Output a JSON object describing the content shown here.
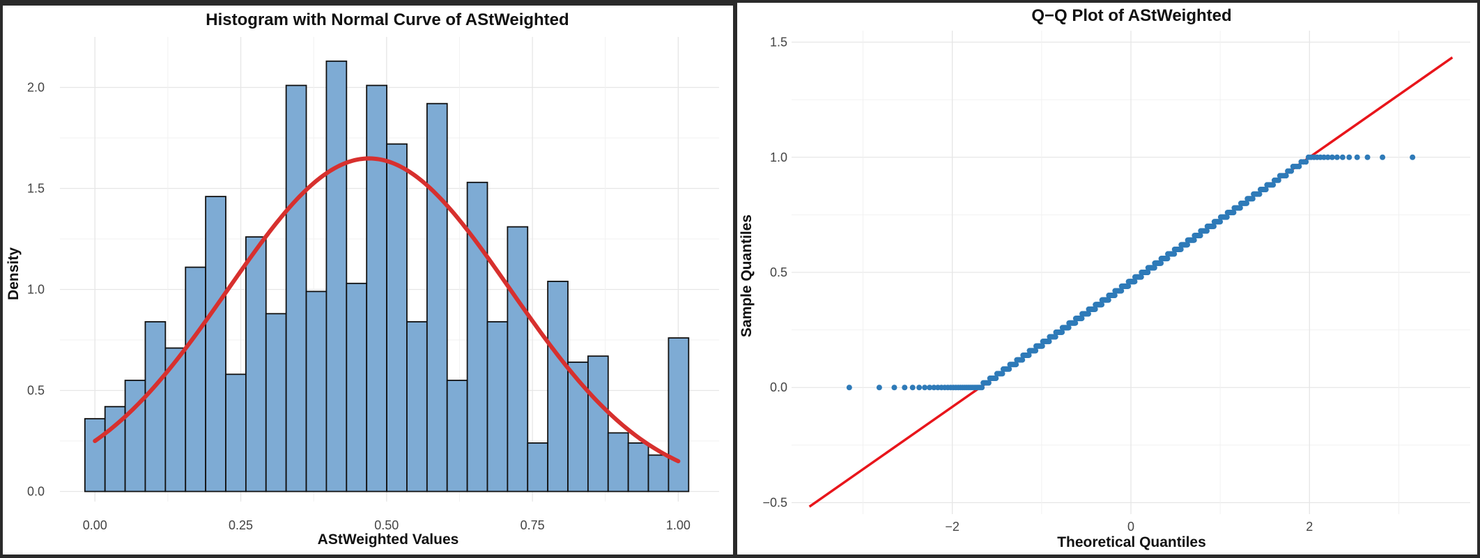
{
  "chart_data": [
    {
      "type": "bar",
      "subtype": "histogram-with-density-curve",
      "title": "Histogram with Normal Curve of AStWeighted",
      "xlabel": "AStWeighted Values",
      "ylabel": "Density",
      "xlim": [
        -0.06,
        1.07
      ],
      "ylim": [
        -0.05,
        2.25
      ],
      "x_ticks": [
        0.0,
        0.25,
        0.5,
        0.75,
        1.0
      ],
      "x_tick_labels": [
        "0.00",
        "0.25",
        "0.50",
        "0.75",
        "1.00"
      ],
      "y_ticks": [
        0.0,
        0.5,
        1.0,
        1.5,
        2.0
      ],
      "y_tick_labels": [
        "0.0",
        "0.5",
        "1.0",
        "1.5",
        "2.0"
      ],
      "bin_width": 0.0345,
      "bin_start": -0.0172,
      "values": [
        0.36,
        0.42,
        0.55,
        0.84,
        0.71,
        1.11,
        1.46,
        0.58,
        1.26,
        0.88,
        2.01,
        0.99,
        2.13,
        1.03,
        2.01,
        1.72,
        0.84,
        1.92,
        0.55,
        1.53,
        0.84,
        1.31,
        0.24,
        1.04,
        0.64,
        0.67,
        0.29,
        0.24,
        0.18,
        0.76
      ],
      "bar_color": "#7eabd4",
      "bar_edge_color": "#111111",
      "curve": {
        "type": "normal",
        "mean": 0.47,
        "sd": 0.242,
        "x_range": [
          0.0,
          1.0
        ],
        "color": "#d7302e"
      },
      "grid": true
    },
    {
      "type": "scatter",
      "subtype": "qq-plot",
      "title": "Q−Q Plot of AStWeighted",
      "xlabel": "Theoretical Quantiles",
      "ylabel": "Sample Quantiles",
      "xlim": [
        -3.8,
        3.8
      ],
      "ylim": [
        -0.55,
        1.55
      ],
      "x_ticks": [
        -2,
        0,
        2
      ],
      "x_tick_labels": [
        "−2",
        "0",
        "2"
      ],
      "y_ticks": [
        -0.5,
        0.0,
        0.5,
        1.0,
        1.5
      ],
      "y_tick_labels": [
        "−0.5",
        "0.0",
        "0.5",
        "1.0",
        "1.5"
      ],
      "point_color": "#2e7ab8",
      "n_points": 620,
      "points_note_lower_clamp": 0.0,
      "points_note_upper_clamp": 1.0,
      "reference_line": {
        "slope": 0.271,
        "intercept": 0.458,
        "x_range": [
          -3.6,
          3.6
        ],
        "color": "#e8151b"
      },
      "grid": true
    }
  ]
}
